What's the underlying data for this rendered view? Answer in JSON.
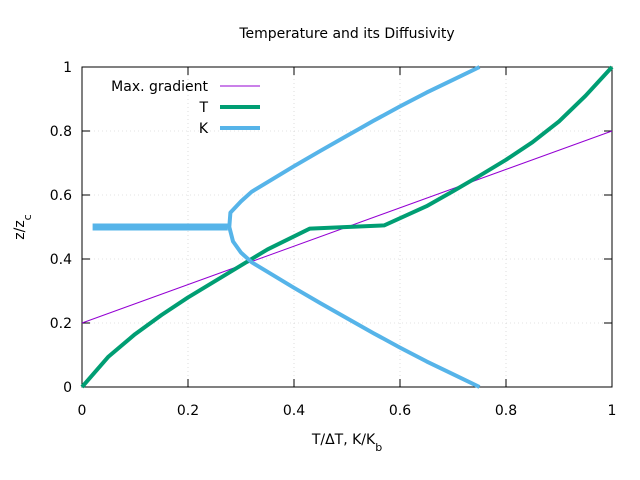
{
  "chart_data": {
    "type": "line",
    "title": "Temperature and its Diffusivity",
    "xlabel": {
      "main": "T/ΔT, K/K",
      "sub": "b"
    },
    "ylabel": {
      "main": "z/z",
      "sub": "c"
    },
    "xlim": [
      0,
      1
    ],
    "ylim": [
      0,
      1
    ],
    "xticks": [
      "0",
      "0.2",
      "0.4",
      "0.6",
      "0.8",
      "1"
    ],
    "yticks": [
      "0",
      "0.2",
      "0.4",
      "0.6",
      "0.8",
      "1"
    ],
    "xtick_values": [
      0,
      0.2,
      0.4,
      0.6,
      0.8,
      1
    ],
    "ytick_values": [
      0,
      0.2,
      0.4,
      0.6,
      0.8,
      1
    ],
    "grid": true,
    "legend_position": "top-left",
    "series": [
      {
        "name": "Max. gradient",
        "color": "#9400d3",
        "style": "thin",
        "x": [
          0,
          1
        ],
        "y": [
          0.2,
          0.8
        ]
      },
      {
        "name": "T",
        "color": "#009e73",
        "style": "thick",
        "x": [
          0,
          0.05,
          0.1,
          0.15,
          0.2,
          0.25,
          0.3,
          0.35,
          0.43,
          0.5,
          0.57,
          0.65,
          0.7,
          0.75,
          0.8,
          0.85,
          0.9,
          0.95,
          1.0
        ],
        "y": [
          0,
          0.095,
          0.165,
          0.225,
          0.28,
          0.33,
          0.38,
          0.43,
          0.495,
          0.5,
          0.505,
          0.565,
          0.612,
          0.66,
          0.71,
          0.765,
          0.83,
          0.91,
          1.0
        ]
      },
      {
        "name": "K",
        "color": "#56b4e9",
        "style": "thick",
        "x": [
          0.75,
          0.7,
          0.65,
          0.6,
          0.55,
          0.5,
          0.45,
          0.4,
          0.35,
          0.32,
          0.3,
          0.285,
          0.278,
          0.28,
          0.3,
          0.32,
          0.35,
          0.4,
          0.45,
          0.5,
          0.55,
          0.6,
          0.65,
          0.7,
          0.75
        ],
        "y": [
          0,
          0.04,
          0.08,
          0.123,
          0.168,
          0.215,
          0.262,
          0.31,
          0.36,
          0.39,
          0.42,
          0.455,
          0.5,
          0.545,
          0.58,
          0.61,
          0.64,
          0.69,
          0.738,
          0.785,
          0.832,
          0.877,
          0.92,
          0.96,
          1.0
        ]
      },
      {
        "name": "K horizontal segment",
        "color": "#56b4e9",
        "style": "very-thick",
        "x": [
          0.02,
          0.275
        ],
        "y": [
          0.5,
          0.5
        ]
      }
    ],
    "legend": [
      {
        "label": "Max. gradient",
        "series": 0
      },
      {
        "label": "T",
        "series": 1
      },
      {
        "label": "K",
        "series": 2
      }
    ]
  }
}
